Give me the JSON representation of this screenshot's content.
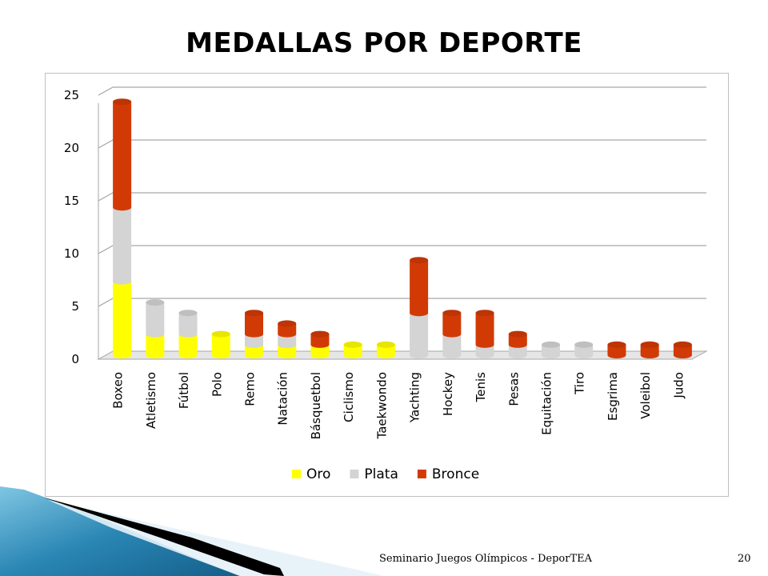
{
  "slide": {
    "title": "MEDALLAS POR DEPORTE",
    "footer": "Seminario Juegos Olímpicos - DeporTEA",
    "page_number": "20"
  },
  "colors": {
    "oro": "#ffff00",
    "plata": "#d4d4d4",
    "bronce": "#d23a05"
  },
  "chart_data": {
    "type": "bar",
    "stacked": true,
    "title": "",
    "xlabel": "",
    "ylabel": "",
    "ylim": [
      0,
      25
    ],
    "yticks": [
      0,
      5,
      10,
      15,
      20,
      25
    ],
    "grid": true,
    "legend_position": "bottom",
    "categories": [
      "Boxeo",
      "Atletismo",
      "Fútbol",
      "Polo",
      "Remo",
      "Natación",
      "Básquetbol",
      "Ciclismo",
      "Taekwondo",
      "Yachting",
      "Hockey",
      "Tenis",
      "Pesas",
      "Equitación",
      "Tiro",
      "Esgrima",
      "Voleibol",
      "Judo"
    ],
    "series": [
      {
        "name": "Oro",
        "values": [
          7,
          2,
          2,
          2,
          1,
          1,
          1,
          1,
          1,
          0,
          0,
          0,
          0,
          0,
          0,
          0,
          0,
          0
        ]
      },
      {
        "name": "Plata",
        "values": [
          7,
          3,
          2,
          0,
          1,
          1,
          0,
          0,
          0,
          4,
          2,
          1,
          1,
          1,
          1,
          0,
          0,
          0
        ]
      },
      {
        "name": "Bronce",
        "values": [
          10,
          0,
          0,
          0,
          2,
          1,
          1,
          0,
          0,
          5,
          2,
          3,
          1,
          0,
          0,
          1,
          1,
          1
        ]
      }
    ]
  }
}
